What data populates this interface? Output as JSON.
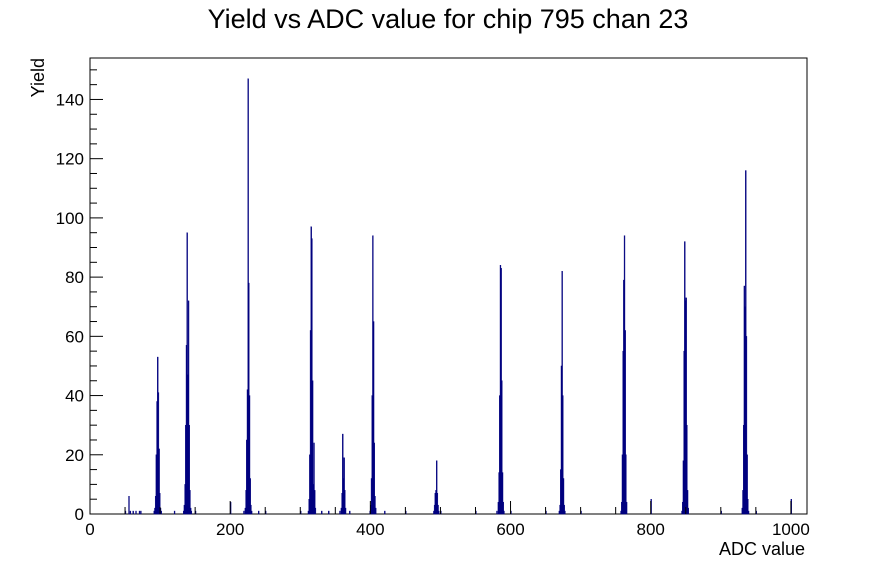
{
  "chart_data": {
    "type": "histogram",
    "title": "Yield vs ADC value for chip 795 chan 23",
    "xlabel": "ADC value",
    "ylabel": "Yield",
    "xlim": [
      0,
      1023
    ],
    "ylim": [
      0,
      154
    ],
    "x_ticks": [
      0,
      200,
      400,
      600,
      800,
      1000
    ],
    "x_tick_labels": [
      "0",
      "200",
      "400",
      "600",
      "800",
      "1000"
    ],
    "y_ticks": [
      0,
      20,
      40,
      60,
      80,
      100,
      120,
      140
    ],
    "y_tick_labels": [
      "0",
      "20",
      "40",
      "60",
      "80",
      "100",
      "120",
      "140"
    ],
    "grid": false,
    "line_color": "#00007f",
    "bin_width": 1,
    "bins": [
      [
        50,
        1
      ],
      [
        55,
        6
      ],
      [
        57,
        1
      ],
      [
        61,
        1
      ],
      [
        65,
        1
      ],
      [
        70,
        1
      ],
      [
        72,
        1
      ],
      [
        91,
        1
      ],
      [
        92,
        2
      ],
      [
        93,
        6
      ],
      [
        94,
        20
      ],
      [
        95,
        38
      ],
      [
        96,
        53
      ],
      [
        97,
        41
      ],
      [
        98,
        22
      ],
      [
        99,
        7
      ],
      [
        100,
        2
      ],
      [
        101,
        1
      ],
      [
        120,
        1
      ],
      [
        133,
        1
      ],
      [
        134,
        3
      ],
      [
        135,
        10
      ],
      [
        136,
        30
      ],
      [
        137,
        57
      ],
      [
        138,
        95
      ],
      [
        139,
        47
      ],
      [
        140,
        72
      ],
      [
        141,
        30
      ],
      [
        142,
        8
      ],
      [
        143,
        2
      ],
      [
        144,
        1
      ],
      [
        150,
        1
      ],
      [
        200,
        4
      ],
      [
        219,
        1
      ],
      [
        221,
        2
      ],
      [
        222,
        8
      ],
      [
        223,
        25
      ],
      [
        224,
        42
      ],
      [
        225,
        147
      ],
      [
        226,
        78
      ],
      [
        227,
        40
      ],
      [
        228,
        12
      ],
      [
        229,
        3
      ],
      [
        230,
        1
      ],
      [
        240,
        1
      ],
      [
        250,
        1
      ],
      [
        300,
        1
      ],
      [
        311,
        1
      ],
      [
        312,
        5
      ],
      [
        313,
        20
      ],
      [
        314,
        62
      ],
      [
        315,
        97
      ],
      [
        316,
        93
      ],
      [
        317,
        45
      ],
      [
        318,
        10
      ],
      [
        319,
        24
      ],
      [
        320,
        8
      ],
      [
        321,
        2
      ],
      [
        330,
        1
      ],
      [
        340,
        1
      ],
      [
        356,
        1
      ],
      [
        358,
        2
      ],
      [
        359,
        7
      ],
      [
        360,
        27
      ],
      [
        361,
        12
      ],
      [
        362,
        19
      ],
      [
        363,
        8
      ],
      [
        364,
        2
      ],
      [
        370,
        1
      ],
      [
        399,
        1
      ],
      [
        400,
        3
      ],
      [
        401,
        12
      ],
      [
        402,
        40
      ],
      [
        403,
        94
      ],
      [
        404,
        65
      ],
      [
        405,
        24
      ],
      [
        406,
        6
      ],
      [
        407,
        2
      ],
      [
        420,
        1
      ],
      [
        450,
        1
      ],
      [
        490,
        1
      ],
      [
        491,
        3
      ],
      [
        492,
        7
      ],
      [
        493,
        8
      ],
      [
        494,
        18
      ],
      [
        495,
        7
      ],
      [
        496,
        3
      ],
      [
        497,
        1
      ],
      [
        500,
        1
      ],
      [
        550,
        1
      ],
      [
        580,
        1
      ],
      [
        582,
        4
      ],
      [
        583,
        14
      ],
      [
        584,
        40
      ],
      [
        585,
        84
      ],
      [
        586,
        83
      ],
      [
        587,
        45
      ],
      [
        588,
        14
      ],
      [
        589,
        4
      ],
      [
        590,
        1
      ],
      [
        600,
        1
      ],
      [
        650,
        1
      ],
      [
        669,
        1
      ],
      [
        670,
        3
      ],
      [
        671,
        15
      ],
      [
        672,
        50
      ],
      [
        673,
        82
      ],
      [
        674,
        40
      ],
      [
        675,
        12
      ],
      [
        676,
        3
      ],
      [
        677,
        1
      ],
      [
        700,
        1
      ],
      [
        757,
        1
      ],
      [
        758,
        4
      ],
      [
        759,
        20
      ],
      [
        760,
        55
      ],
      [
        761,
        79
      ],
      [
        762,
        94
      ],
      [
        763,
        62
      ],
      [
        764,
        20
      ],
      [
        765,
        4
      ],
      [
        800,
        5
      ],
      [
        844,
        1
      ],
      [
        845,
        4
      ],
      [
        846,
        18
      ],
      [
        847,
        55
      ],
      [
        848,
        92
      ],
      [
        849,
        72
      ],
      [
        850,
        73
      ],
      [
        851,
        30
      ],
      [
        852,
        8
      ],
      [
        853,
        2
      ],
      [
        900,
        1
      ],
      [
        930,
        2
      ],
      [
        931,
        8
      ],
      [
        932,
        30
      ],
      [
        933,
        77
      ],
      [
        934,
        70
      ],
      [
        935,
        116
      ],
      [
        936,
        60
      ],
      [
        937,
        20
      ],
      [
        938,
        5
      ],
      [
        939,
        1
      ],
      [
        950,
        1
      ],
      [
        1000,
        5
      ]
    ]
  }
}
